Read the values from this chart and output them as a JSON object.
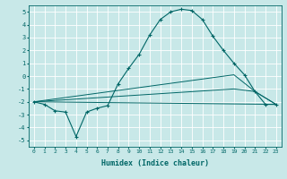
{
  "title": "",
  "xlabel": "Humidex (Indice chaleur)",
  "ylabel": "",
  "background_color": "#c8e8e8",
  "grid_color": "#ffffff",
  "line_color": "#006666",
  "xlim": [
    -0.5,
    23.5
  ],
  "ylim": [
    -5.5,
    5.5
  ],
  "yticks": [
    -5,
    -4,
    -3,
    -2,
    -1,
    0,
    1,
    2,
    3,
    4,
    5
  ],
  "xticks": [
    0,
    1,
    2,
    3,
    4,
    5,
    6,
    7,
    8,
    9,
    10,
    11,
    12,
    13,
    14,
    15,
    16,
    17,
    18,
    19,
    20,
    21,
    22,
    23
  ],
  "curve1_x": [
    0,
    1,
    2,
    3,
    4,
    5,
    6,
    7,
    8,
    9,
    10,
    11,
    12,
    13,
    14,
    15,
    16,
    17,
    18,
    19,
    20,
    21,
    22,
    23
  ],
  "curve1_y": [
    -2.0,
    -2.2,
    -2.7,
    -2.8,
    -4.7,
    -2.8,
    -2.5,
    -2.3,
    -0.6,
    0.6,
    1.7,
    3.2,
    4.4,
    5.0,
    5.2,
    5.1,
    4.4,
    3.1,
    2.0,
    1.0,
    0.1,
    -1.2,
    -2.2,
    -2.2
  ],
  "curve2_x": [
    0,
    23
  ],
  "curve2_y": [
    -2.0,
    -2.2
  ],
  "curve3_x": [
    0,
    19,
    21,
    23
  ],
  "curve3_y": [
    -2.0,
    0.1,
    -1.2,
    -2.2
  ],
  "curve4_x": [
    0,
    19,
    21,
    23
  ],
  "curve4_y": [
    -2.0,
    -1.0,
    -1.2,
    -2.2
  ]
}
